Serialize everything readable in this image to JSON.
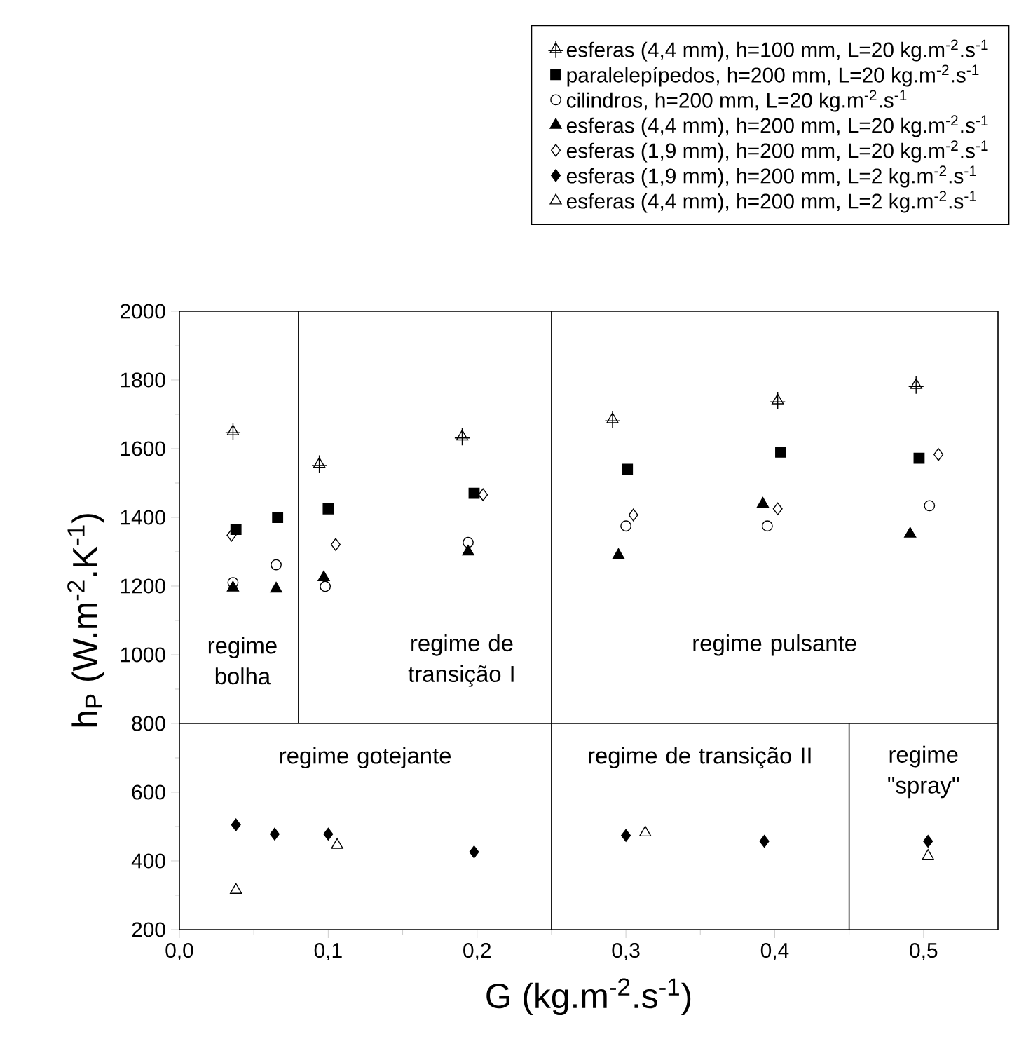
{
  "chart_data": {
    "type": "scatter",
    "xlabel": "G (kg.m$^{-2}$.s$^{-1}$)",
    "ylabel": "h$_{P}$ (W.m$^{-2}$.K$^{-1}$)",
    "xlim": [
      0,
      0.55
    ],
    "ylim": [
      200,
      2000
    ],
    "xticks": [
      {
        "value": 0,
        "label": "0,0"
      },
      {
        "value": 0.1,
        "label": "0,1"
      },
      {
        "value": 0.2,
        "label": "0,2"
      },
      {
        "value": 0.3,
        "label": "0,3"
      },
      {
        "value": 0.4,
        "label": "0,4"
      },
      {
        "value": 0.5,
        "label": "0,5"
      }
    ],
    "yticks": [
      200,
      400,
      600,
      800,
      1000,
      1200,
      1400,
      1600,
      1800,
      2000
    ],
    "legend": "top right",
    "grid": false,
    "series": [
      {
        "name": "esferas (4,4 mm), h=100 mm, L=20 kg.m$^{-2}$.s$^{-1}$",
        "color": "#000000",
        "marker": "cross",
        "x": [
          0.036,
          0.094,
          0.19,
          0.291,
          0.402,
          0.495
        ],
        "values": [
          1650,
          1555,
          1635,
          1685,
          1740,
          1785
        ]
      },
      {
        "name": "paralelepípedos, h=200 mm, L=20 kg.m$^{-2}$.s$^{-1}$",
        "color": "#000000",
        "marker": "square",
        "x": [
          0.038,
          0.066,
          0.1,
          0.198,
          0.301,
          0.404,
          0.497
        ],
        "values": [
          1365,
          1400,
          1425,
          1470,
          1540,
          1590,
          1572
        ]
      },
      {
        "name": "cilindros, h=200 mm, L=20 kg.m$^{-2}$.s$^{-1}$",
        "color": "#000000",
        "marker": "circle",
        "x": [
          0.036,
          0.065,
          0.098,
          0.194,
          0.3,
          0.395,
          0.504
        ],
        "values": [
          1210,
          1262,
          1199,
          1327,
          1375,
          1375,
          1434
        ]
      },
      {
        "name": "esferas (4,4 mm), h=200 mm, L=20 kg.m$^{-2}$.s$^{-1}$",
        "color": "#000000",
        "marker": "triangle",
        "x": [
          0.036,
          0.065,
          0.097,
          0.194,
          0.295,
          0.392,
          0.491
        ],
        "values": [
          1195,
          1192,
          1225,
          1300,
          1290,
          1439,
          1352
        ]
      },
      {
        "name": "esferas (1,9 mm), h=200 mm, L=20 kg.m$^{-2}$.s$^{-1}$",
        "color": "#000000",
        "marker": "diamond",
        "x": [
          0.035,
          0.105,
          0.204,
          0.305,
          0.402,
          0.51
        ],
        "values": [
          1348,
          1321,
          1466,
          1407,
          1425,
          1583
        ]
      },
      {
        "name": "esferas (1,9 mm), h=200 mm, L=2 kg.m$^{-2}$.s$^{-1}$",
        "color": "#000000",
        "marker": "diamond",
        "x": [
          0.038,
          0.064,
          0.1,
          0.198,
          0.3,
          0.393,
          0.503
        ],
        "values": [
          505,
          478,
          478,
          426,
          474,
          457,
          457
        ]
      },
      {
        "name": "esferas (4,4 mm), h=200 mm, L=2 kg.m$^{-2}$.s$^{-1}$",
        "color": "#000000",
        "marker": "triangle",
        "x": [
          0.038,
          0.106,
          0.313,
          0.503
        ],
        "values": [
          315,
          446,
          482,
          414
        ]
      },
      {
        "type": "line",
        "color": "#000000",
        "marker": "none",
        "line_style": "solid",
        "x": [
          0.08,
          0.08
        ],
        "values": [
          800,
          2000
        ]
      },
      {
        "type": "line",
        "color": "#000000",
        "marker": "none",
        "line_style": "solid",
        "x": [
          0.45,
          0.45
        ],
        "values": [
          200,
          800
        ]
      }
    ],
    "ref_lines": [
      {
        "axis": "y",
        "value": 800,
        "color": "#000000"
      },
      {
        "axis": "x",
        "value": 0.25,
        "color": "#000000"
      }
    ],
    "annotations": [
      "regime bolha",
      "regime de transição I",
      "regime pulsante",
      "regime gotejante",
      "regime de transição II",
      "regime \"spray\""
    ]
  }
}
